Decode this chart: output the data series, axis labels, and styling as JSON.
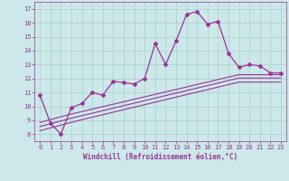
{
  "x": [
    0,
    1,
    2,
    3,
    4,
    5,
    6,
    7,
    8,
    9,
    10,
    11,
    12,
    13,
    14,
    15,
    16,
    17,
    18,
    19,
    20,
    21,
    22,
    23
  ],
  "main_line": [
    10.8,
    8.8,
    8.0,
    9.9,
    10.2,
    11.0,
    10.8,
    11.8,
    11.7,
    11.6,
    12.0,
    14.5,
    13.0,
    14.7,
    16.6,
    16.8,
    15.9,
    16.1,
    13.8,
    12.8,
    13.0,
    12.9,
    12.4,
    12.4
  ],
  "reg_upper": [
    8.85,
    9.05,
    9.25,
    9.45,
    9.62,
    9.8,
    9.98,
    10.15,
    10.33,
    10.51,
    10.68,
    10.86,
    11.04,
    11.21,
    11.39,
    11.57,
    11.74,
    11.92,
    12.1,
    12.27,
    12.27,
    12.27,
    12.27,
    12.27
  ],
  "reg_mid": [
    8.55,
    8.75,
    8.95,
    9.15,
    9.33,
    9.51,
    9.69,
    9.87,
    10.05,
    10.23,
    10.41,
    10.59,
    10.77,
    10.95,
    11.13,
    11.31,
    11.49,
    11.67,
    11.85,
    12.03,
    12.03,
    12.03,
    12.03,
    12.03
  ],
  "reg_lower": [
    8.25,
    8.45,
    8.65,
    8.85,
    9.04,
    9.22,
    9.4,
    9.58,
    9.76,
    9.94,
    10.12,
    10.3,
    10.48,
    10.66,
    10.84,
    11.02,
    11.2,
    11.38,
    11.56,
    11.74,
    11.74,
    11.74,
    11.74,
    11.74
  ],
  "line_color": "#993399",
  "bg_color": "#cce8e8",
  "grid_color": "#aacfcf",
  "xlabel": "Windchill (Refroidissement éolien,°C)",
  "ylim": [
    7.5,
    17.5
  ],
  "xlim": [
    -0.5,
    23.5
  ],
  "yticks": [
    8,
    9,
    10,
    11,
    12,
    13,
    14,
    15,
    16,
    17
  ],
  "xticks": [
    0,
    1,
    2,
    3,
    4,
    5,
    6,
    7,
    8,
    9,
    10,
    11,
    12,
    13,
    14,
    15,
    16,
    17,
    18,
    19,
    20,
    21,
    22,
    23
  ]
}
